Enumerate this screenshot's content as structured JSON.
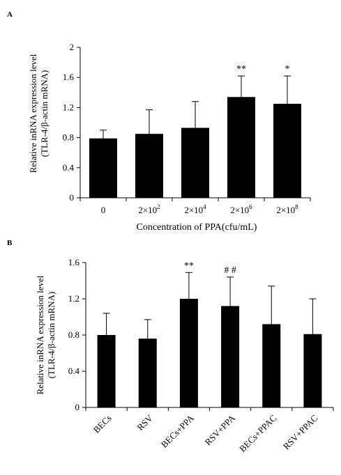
{
  "colors": {
    "bar": "#000000",
    "axis": "#000000",
    "background": "#ffffff"
  },
  "chart_data": [
    {
      "panel": "A",
      "type": "bar",
      "ylabel_line1": "Relative inRNA expression level",
      "ylabel_line2": "(TLR-4/β-actin mRNA)",
      "xlabel": "Concentration of PPA(cfu/mL)",
      "categories": [
        {
          "base": "0",
          "exp": ""
        },
        {
          "base": "2×10",
          "exp": "2"
        },
        {
          "base": "2×10",
          "exp": "4"
        },
        {
          "base": "2×10",
          "exp": "6"
        },
        {
          "base": "2×10",
          "exp": "8"
        }
      ],
      "values": [
        0.79,
        0.85,
        0.93,
        1.34,
        1.25
      ],
      "errors": [
        0.11,
        0.32,
        0.35,
        0.28,
        0.37
      ],
      "significance": [
        "",
        "",
        "",
        "**",
        "*"
      ],
      "ylim": [
        0,
        2
      ],
      "yticks": [
        "0",
        "0.4",
        "0.8",
        "1.2",
        "1.6",
        "2"
      ],
      "grid": false,
      "legend": "none"
    },
    {
      "panel": "B",
      "type": "bar",
      "ylabel_line1": "Relative inRNA expression level",
      "ylabel_line2": "(TLR-4/β-actin mRNA)",
      "xlabel": "",
      "categories": [
        "BECs",
        "RSV",
        "BECs+PPA",
        "RSV+PPA",
        "BECs+PPAC",
        "RSV+PPAC"
      ],
      "values": [
        0.8,
        0.76,
        1.2,
        1.12,
        0.92,
        0.81
      ],
      "errors": [
        0.24,
        0.21,
        0.29,
        0.32,
        0.42,
        0.39
      ],
      "significance": [
        "",
        "",
        "**",
        "# #",
        "",
        ""
      ],
      "ylim": [
        0,
        1.6
      ],
      "yticks": [
        "0",
        "0.4",
        "0.8",
        "1.2",
        "1.6"
      ],
      "grid": false,
      "legend": "none"
    }
  ]
}
